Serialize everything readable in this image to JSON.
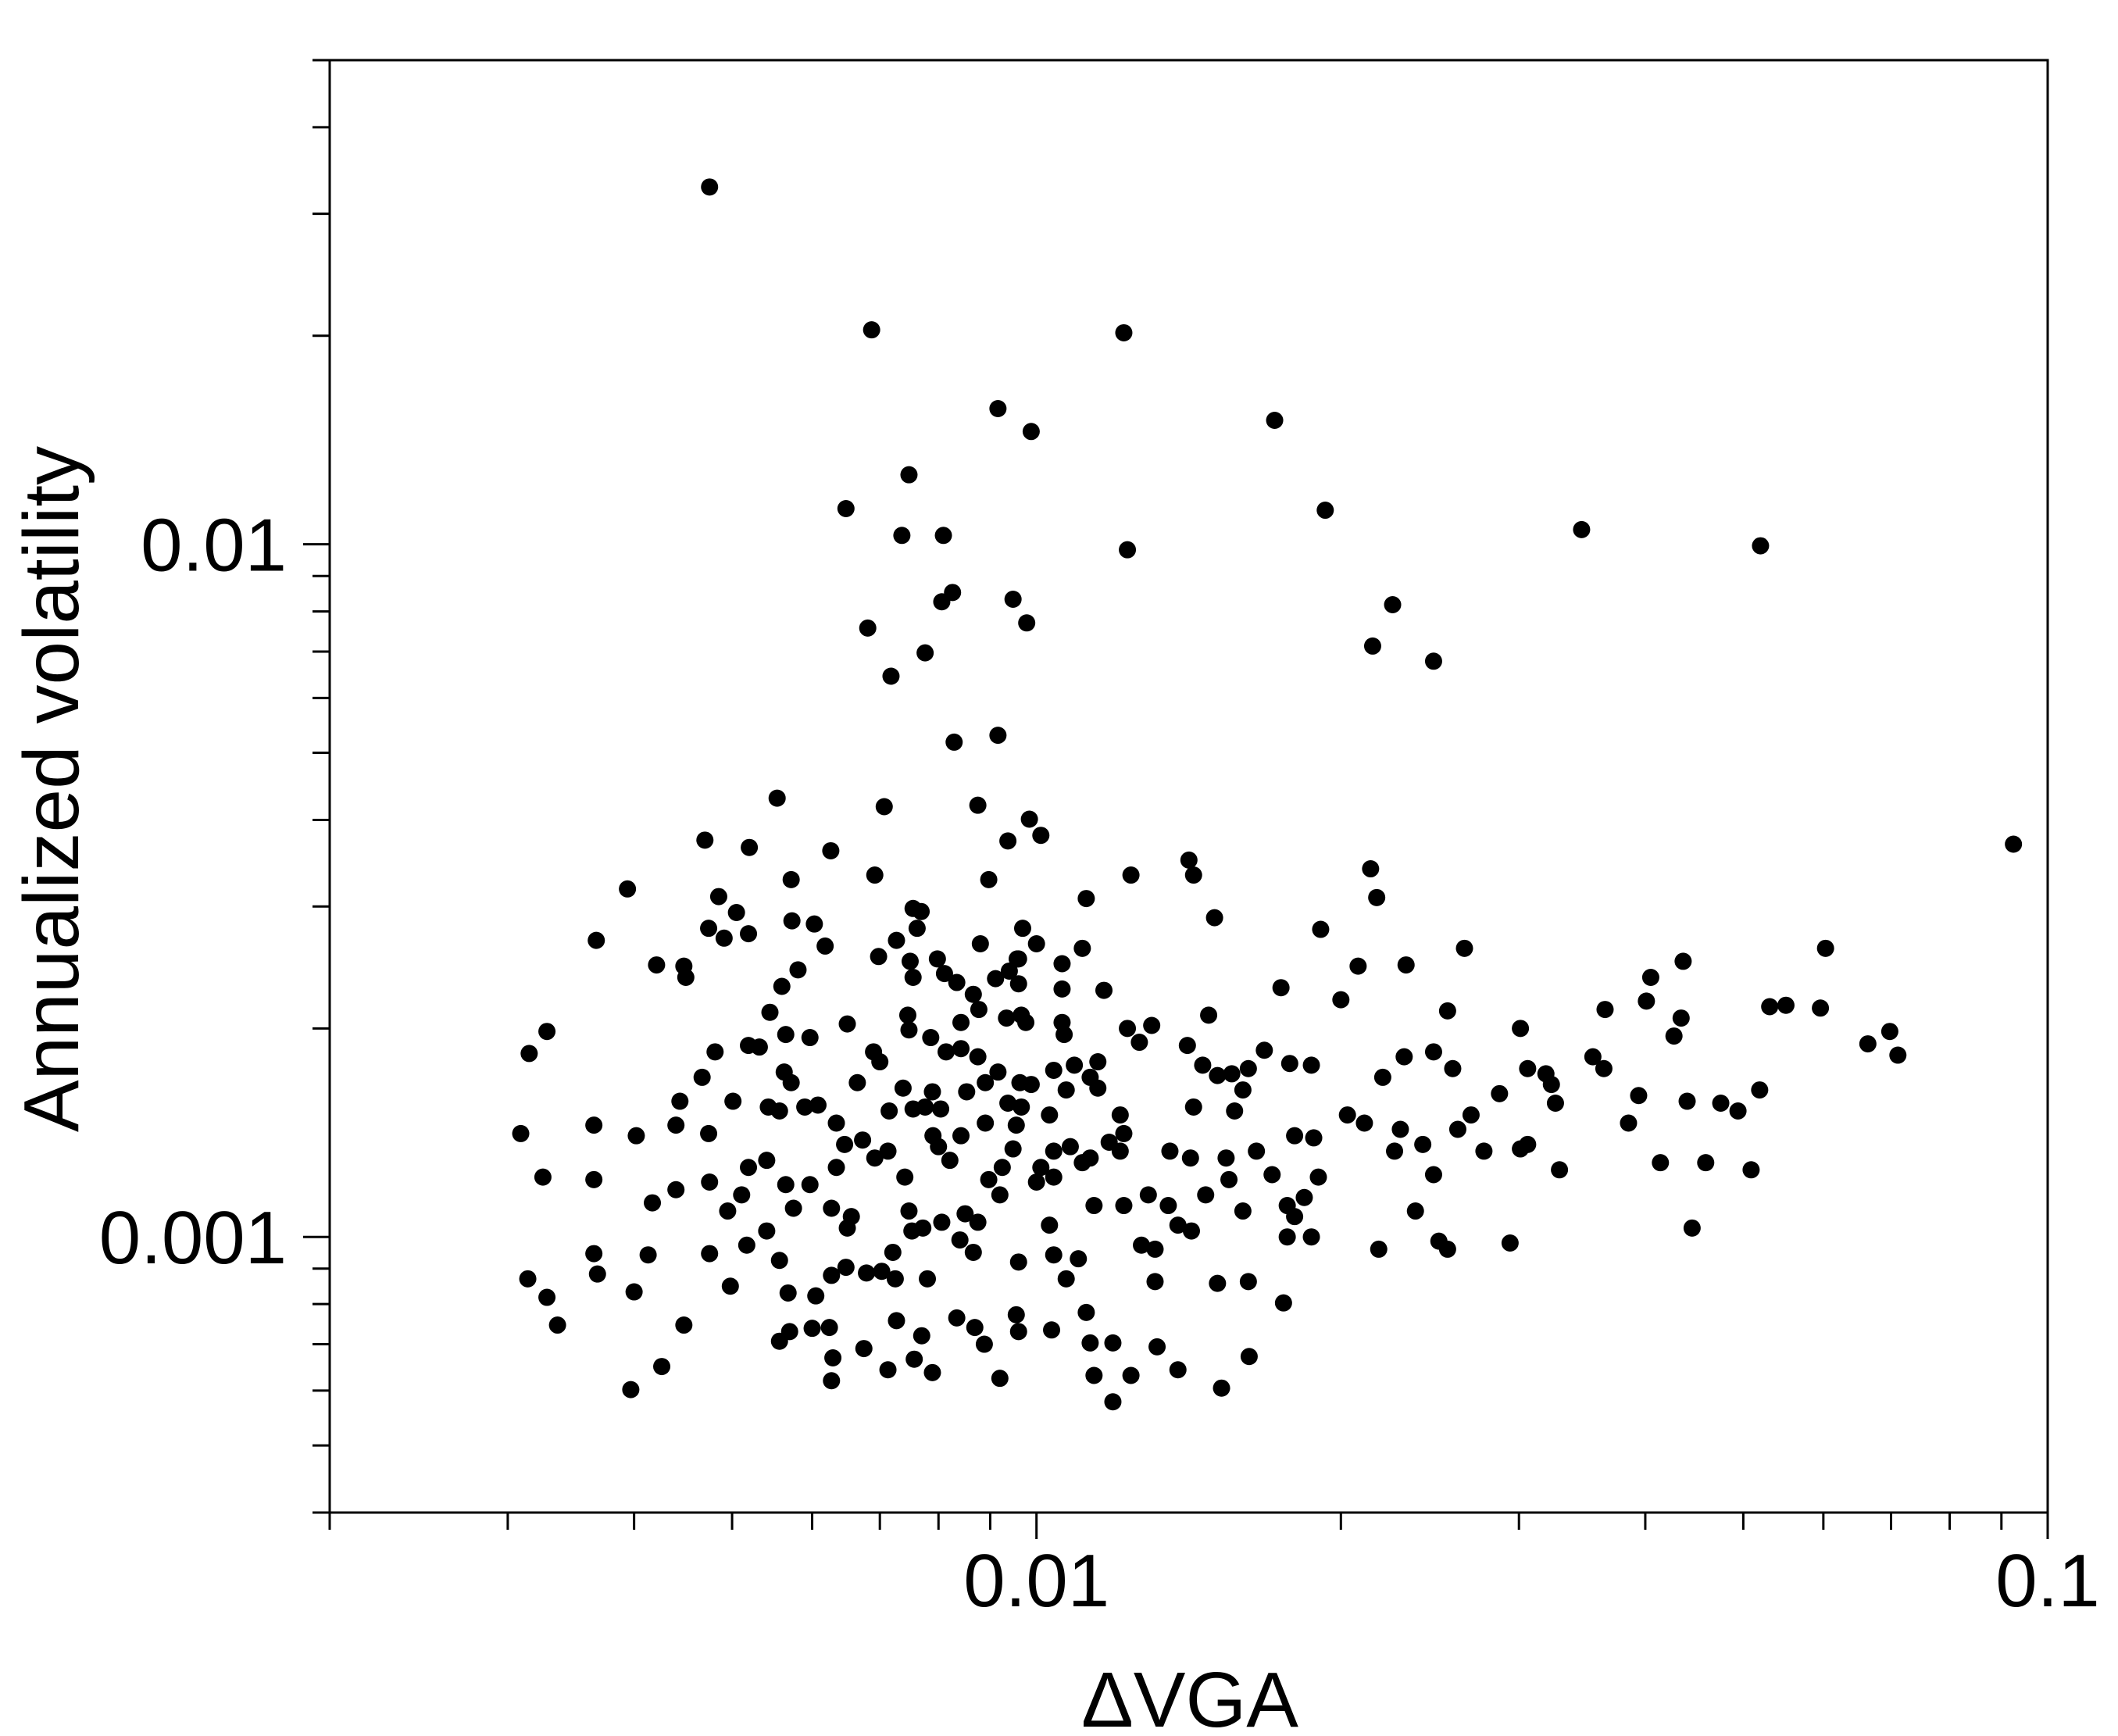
{
  "chart_data": {
    "type": "scatter",
    "x_label": "ΔVGA",
    "y_label": "Annualized volatility",
    "x_log": true,
    "y_log": true,
    "color": "#000000",
    "xlim": [
      0.002,
      0.1
    ],
    "ylim": [
      0.0004,
      0.05
    ],
    "xticks": [
      0.01,
      0.1
    ],
    "x_minor_ticks": [
      0.002,
      0.003,
      0.004,
      0.005,
      0.006,
      0.007,
      0.008,
      0.009,
      0.02,
      0.03,
      0.04,
      0.05,
      0.06,
      0.07,
      0.08,
      0.09
    ],
    "yticks": [
      0.001,
      0.01
    ],
    "y_minor_ticks": [
      0.0004,
      0.0005,
      0.0006,
      0.0007,
      0.0008,
      0.0009,
      0.002,
      0.003,
      0.004,
      0.005,
      0.006,
      0.007,
      0.008,
      0.009,
      0.02,
      0.03,
      0.04,
      0.05
    ],
    "x": [
      0.00475,
      0.00687,
      0.0122,
      0.00916,
      0.00988,
      0.0172,
      0.00748,
      0.00648,
      0.00736,
      0.00809,
      0.0123,
      0.0193,
      0.0346,
      0.052,
      0.00826,
      0.00806,
      0.00948,
      0.00978,
      0.00681,
      0.0225,
      0.0215,
      0.0247,
      0.00776,
      0.00718,
      0.00916,
      0.00829,
      0.0925,
      0.00554,
      0.00707,
      0.00875,
      0.00984,
      0.0047,
      0.0052,
      0.00626,
      0.01415,
      0.0143,
      0.0124,
      0.0214,
      0.0217,
      0.00394,
      0.00897,
      0.0112,
      0.00485,
      0.015,
      0.0265,
      0.0603,
      0.0191,
      0.00367,
      0.00573,
      0.00755,
      0.0088,
      0.00957,
      0.0106,
      0.0111,
      0.00421,
      0.0045,
      0.0056,
      0.0208,
      0.0232,
      0.0436,
      0.0405,
      0.0531,
      0.0551,
      0.0596,
      0.0401,
      0.0365,
      0.0434,
      0.0427,
      0.0664,
      0.0698,
      0.0711,
      0.0301,
      0.0255,
      0.02,
      0.01745,
      0.013,
      0.0141,
      0.0148,
      0.00328,
      0.00315,
      0.00309,
      0.00325,
      0.00314,
      0.00328,
      0.00336,
      0.00397,
      0.00426,
      0.00365,
      0.00368,
      0.004,
      0.00413,
      0.00448,
      0.00475,
      0.00365,
      0.00402,
      0.00365,
      0.00417,
      0.0044,
      0.0044,
      0.00474,
      0.00444,
      0.00467,
      0.00501,
      0.00481,
      0.00519,
      0.00475,
      0.00495,
      0.00519,
      0.00517,
      0.00498,
      0.00557,
      0.00568,
      0.00557,
      0.0057,
      0.00624,
      0.00629,
      0.00627,
      0.00605,
      0.00627,
      0.00675,
      0.00713,
      0.00789,
      0.00757,
      0.0092,
      0.00727,
      0.0077,
      0.00834,
      0.00869,
      0.00888,
      0.0096,
      0.01035,
      0.0112,
      0.0113,
      0.0119,
      0.0114,
      0.0124,
      0.0119,
      0.01316,
      0.0138,
      0.01524,
      0.01623,
      0.0151,
      0.01755,
      0.0177,
      0.01423,
      0.0218,
      0.0237,
      0.025,
      0.0255,
      0.0294,
      0.0445,
      0.0414,
      0.0459,
      0.0509,
      0.0385,
      0.044,
      0.0475,
      0.0494,
      0.0519,
      0.0394,
      0.0355,
      0.0364,
      0.0319,
      0.0323,
      0.0326,
      0.0306,
      0.0287,
      0.0301,
      0.0306,
      0.0277,
      0.0329,
      0.0269,
      0.0258,
      0.0247,
      0.0231,
      0.022,
      0.0203,
      0.0211,
      0.0226,
      0.0229,
      0.0241,
      0.0247,
      0.0261,
      0.0188,
      0.018,
      0.019,
      0.0187,
      0.0178,
      0.0168,
      0.0162,
      0.016,
      0.0156,
      0.0146,
      0.0151,
      0.0143,
      0.0157,
      0.0165,
      0.0171,
      0.0154,
      0.0155,
      0.0147,
      0.016,
      0.0177,
      0.0184,
      0.0142,
      0.01355,
      0.0129,
      0.0135,
      0.0127,
      0.0131,
      0.0122,
      0.0114,
      0.0111,
      0.0104,
      0.0103,
      0.0104,
      0.0107,
      0.011,
      0.0096,
      0.00866,
      0.0084,
      0.00875,
      0.0085,
      0.00806,
      0.00772,
      0.00748,
      0.00753,
      0.00721,
      0.0078,
      0.00725,
      0.00679,
      0.00703,
      0.00648,
      0.0065,
      0.00656,
      0.00627,
      0.00597,
      0.00634,
      0.00646,
      0.00673,
      0.00692,
      0.00713,
      0.00741,
      0.008,
      0.00821,
      0.00897,
      0.00925,
      0.0092,
      0.00948,
      0.0089,
      0.00842,
      0.0079,
      0.00755,
      0.00776,
      0.00804,
      0.00738,
      0.00789,
      0.00853,
      0.0089,
      0.00916,
      0.00963,
      0.00966,
      0.00937,
      0.00875,
      0.00842,
      0.00814,
      0.00786,
      0.00748,
      0.007,
      0.0069,
      0.0065,
      0.00597,
      0.00565,
      0.00545,
      0.00532,
      0.00563,
      0.00572,
      0.0059,
      0.00608,
      0.00557,
      0.00543,
      0.00541,
      0.00565,
      0.00575,
      0.00541,
      0.00511,
      0.00634,
      0.00665,
      0.00715,
      0.00842,
      0.00877,
      0.00746,
      0.00698,
      0.00727,
      0.0075,
      0.00755,
      0.00762,
      0.00769,
      0.00798,
      0.00811,
      0.00834,
      0.00866,
      0.0094,
      0.0096,
      0.00966,
      0.00934,
      0.0106,
      0.0106,
      0.01065,
      0.01166,
      0.0123,
      0.01264,
      0.0115,
      0.0113,
      0.0109,
      0.0104,
      0.0107,
      0.0115,
      0.0121,
      0.0122,
      0.0121,
      0.0118,
      0.0113,
      0.0108,
      0.0104,
      0.0103,
      0.00955,
      0.0101,
      0.01,
      0.00988,
      0.00976,
      0.0101,
      0.00937,
      0.00969,
      0.01,
      0.0096,
      0.00911,
      0.00692,
      0.00572,
      0.00603,
      0.00618,
      0.00581,
      0.00519,
      0.00505,
      0.00474,
      0.00448,
      0.00491,
      0.0131,
      0.0138,
      0.0162,
      0.0187,
      0.018,
      0.006,
      0.00955
    ],
    "values": [
      0.0328,
      0.0204,
      0.0202,
      0.0157,
      0.01455,
      0.0151,
      0.0126,
      0.01126,
      0.0103,
      0.0103,
      0.00982,
      0.0112,
      0.0105,
      0.00995,
      0.00852,
      0.00826,
      0.00833,
      0.0077,
      0.00757,
      0.00818,
      0.00713,
      0.00678,
      0.00697,
      0.00645,
      0.0053,
      0.00518,
      0.00369,
      0.0043,
      0.00418,
      0.0042,
      0.00401,
      0.00374,
      0.00365,
      0.00361,
      0.0035,
      0.00333,
      0.00333,
      0.0034,
      0.00309,
      0.00318,
      0.00328,
      0.00308,
      0.0031,
      0.00289,
      0.00261,
      0.00261,
      0.00278,
      0.00268,
      0.00286,
      0.00298,
      0.00265,
      0.00252,
      0.00248,
      0.00261,
      0.00247,
      0.00237,
      0.0023,
      0.00246,
      0.00247,
      0.0025,
      0.00237,
      0.00215,
      0.00216,
      0.00214,
      0.00219,
      0.00213,
      0.00207,
      0.00195,
      0.0019,
      0.00198,
      0.00183,
      0.002,
      0.00212,
      0.0022,
      0.00229,
      0.00202,
      0.00189,
      0.00209,
      0.00198,
      0.00184,
      0.00141,
      0.00122,
      0.00087,
      0.000818,
      0.000746,
      0.000602,
      0.00065,
      0.000946,
      0.000884,
      0.000833,
      0.000942,
      0.000746,
      0.000946,
      0.00121,
      0.0014,
      0.00145,
      0.00112,
      0.00117,
      0.00145,
      0.00141,
      0.00157,
      0.0017,
      0.00157,
      0.00185,
      0.00189,
      0.0012,
      0.00109,
      0.00126,
      0.000973,
      0.000849,
      0.000925,
      0.00083,
      0.000707,
      0.00073,
      0.00074,
      0.000669,
      0.00062,
      0.000822,
      0.00088,
      0.00069,
      0.000643,
      0.000637,
      0.000666,
      0.000625,
      0.000757,
      0.00072,
      0.000764,
      0.00074,
      0.0007,
      0.00073,
      0.000734,
      0.000778,
      0.000703,
      0.000703,
      0.000631,
      0.000631,
      0.000578,
      0.000694,
      0.000643,
      0.000605,
      0.000672,
      0.000857,
      0.000803,
      0.001,
      0.00102,
      0.00096,
      0.00109,
      0.000986,
      0.00096,
      0.00098,
      0.00103,
      0.00128,
      0.00128,
      0.00125,
      0.00146,
      0.00157,
      0.00156,
      0.00152,
      0.00163,
      0.0016,
      0.00182,
      0.00175,
      0.00172,
      0.00166,
      0.00156,
      0.00175,
      0.00161,
      0.00134,
      0.00136,
      0.00133,
      0.00125,
      0.0015,
      0.00175,
      0.00185,
      0.00182,
      0.0017,
      0.0015,
      0.00146,
      0.00133,
      0.00143,
      0.00136,
      0.00123,
      0.00143,
      0.00139,
      0.0014,
      0.00122,
      0.00177,
      0.00178,
      0.00186,
      0.00175,
      0.00163,
      0.00172,
      0.00177,
      0.00171,
      0.00154,
      0.00152,
      0.00133,
      0.00123,
      0.0013,
      0.00121,
      0.00115,
      0.00109,
      0.00111,
      0.00114,
      0.0013,
      0.00133,
      0.00115,
      0.00111,
      0.000973,
      0.00096,
      0.00111,
      0.00111,
      0.00128,
      0.00122,
      0.00104,
      0.000942,
      0.00087,
      0.00093,
      0.00092,
      0.00095,
      0.00099,
      0.00105,
      0.00108,
      0.00105,
      0.00103,
      0.00109,
      0.00102,
      0.00095,
      0.00087,
      0.00087,
      0.000887,
      0.000892,
      0.000904,
      0.00103,
      0.00107,
      0.0011,
      0.00119,
      0.00126,
      0.00136,
      0.00138,
      0.0013,
      0.00133,
      0.00122,
      0.00135,
      0.00129,
      0.00121,
      0.00126,
      0.00115,
      0.00134,
      0.00146,
      0.0014,
      0.0014,
      0.00153,
      0.00154,
      0.00153,
      0.00164,
      0.00162,
      0.00162,
      0.00167,
      0.00173,
      0.00167,
      0.00154,
      0.00156,
      0.00182,
      0.00187,
      0.00185,
      0.00194,
      0.00199,
      0.00179,
      0.00185,
      0.00203,
      0.00194,
      0.00196,
      0.00211,
      0.00188,
      0.00173,
      0.00167,
      0.00154,
      0.00155,
      0.00152,
      0.00154,
      0.00129,
      0.00119,
      0.0011,
      0.00102,
      0.00115,
      0.00146,
      0.00167,
      0.00152,
      0.00204,
      0.00213,
      0.00209,
      0.00254,
      0.00268,
      0.0025,
      0.00237,
      0.00279,
      0.00295,
      0.00252,
      0.0024,
      0.00233,
      0.00224,
      0.00242,
      0.00232,
      0.00209,
      0.00207,
      0.00228,
      0.00204,
      0.00196,
      0.00227,
      0.002,
      0.00191,
      0.00179,
      0.0017,
      0.00177,
      0.00174,
      0.00163,
      0.00164,
      0.0015,
      0.00141,
      0.00133,
      0.00137,
      0.0013,
      0.00135,
      0.00133,
      0.0015,
      0.00145,
      0.00126,
      0.0012,
      0.00166,
      0.00204,
      0.0038,
      0.00373,
      0.00279,
      0.00265,
      0.00252,
      0.00236,
      0.00333,
      0.00328,
      0.00283,
      0.00263,
      0.00243,
      0.00274,
      0.00294,
      0.00279,
      0.00246,
      0.0027,
      0.000862,
      0.00104,
      0.000862,
      0.001,
      0.00107,
      0.000738,
      0.000772
    ]
  }
}
